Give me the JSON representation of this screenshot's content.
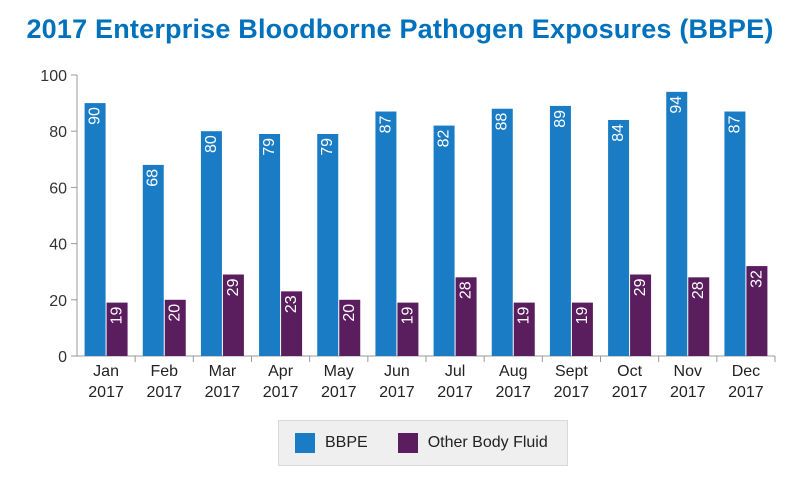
{
  "colors": {
    "title": "#0071bc",
    "bbpe": "#1a7cc4",
    "other": "#5a1e5e",
    "axis": "#999999",
    "grid": "#e0e0e0"
  },
  "chart_data": {
    "type": "bar",
    "title": "2017 Enterprise Bloodborne Pathogen Exposures (BBPE)",
    "categories": [
      [
        "Jan",
        "2017"
      ],
      [
        "Feb",
        "2017"
      ],
      [
        "Mar",
        "2017"
      ],
      [
        "Apr",
        "2017"
      ],
      [
        "May",
        "2017"
      ],
      [
        "Jun",
        "2017"
      ],
      [
        "Jul",
        "2017"
      ],
      [
        "Aug",
        "2017"
      ],
      [
        "Sept",
        "2017"
      ],
      [
        "Oct",
        "2017"
      ],
      [
        "Nov",
        "2017"
      ],
      [
        "Dec",
        "2017"
      ]
    ],
    "series": [
      {
        "name": "BBPE",
        "values": [
          90,
          68,
          80,
          79,
          79,
          87,
          82,
          88,
          89,
          84,
          94,
          87
        ]
      },
      {
        "name": "Other Body Fluid",
        "values": [
          19,
          20,
          29,
          23,
          20,
          19,
          28,
          19,
          19,
          29,
          28,
          32
        ]
      }
    ],
    "ylim": [
      0,
      100
    ],
    "yticks": [
      0,
      20,
      40,
      60,
      80,
      100
    ],
    "grid": false,
    "legend_position": "bottom"
  }
}
